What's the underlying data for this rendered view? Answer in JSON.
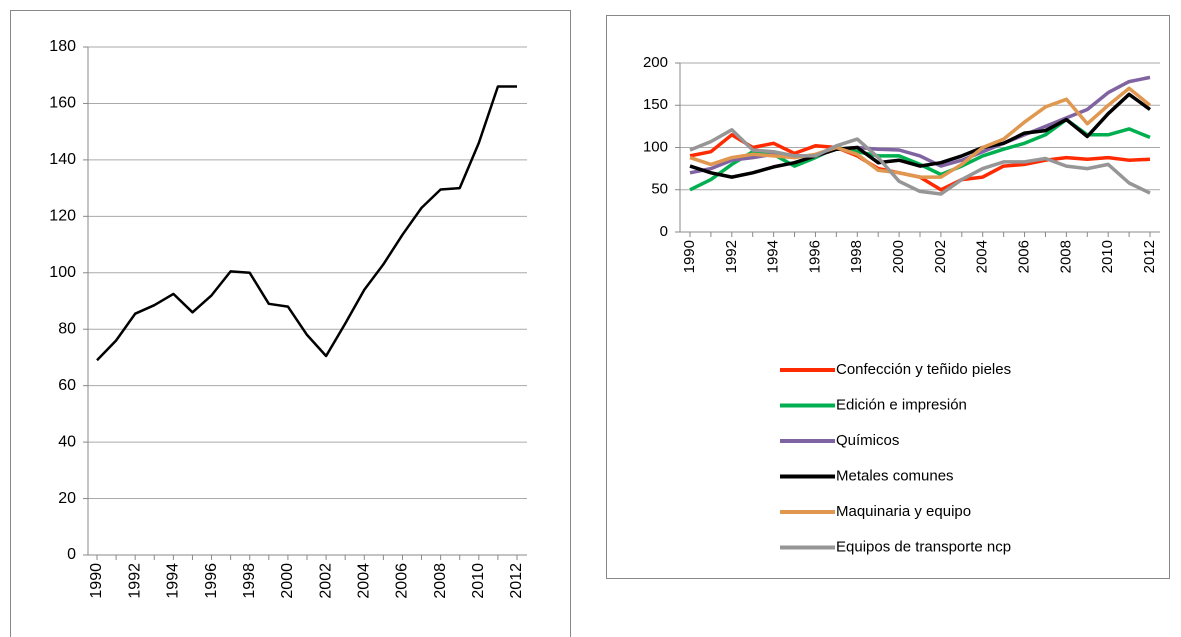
{
  "chart_data": [
    {
      "type": "line",
      "categories": [
        "1990",
        null,
        "1992",
        null,
        "1994",
        null,
        "1996",
        null,
        "1998",
        null,
        "2000",
        null,
        "2002",
        null,
        "2004",
        null,
        "2006",
        null,
        "2008",
        null,
        "2010",
        null,
        "2012"
      ],
      "values": [
        69,
        76,
        85.5,
        88.5,
        92.5,
        86,
        92,
        100.5,
        100,
        89,
        88,
        78,
        70.5,
        82,
        94,
        103,
        113.5,
        123,
        129.5,
        130,
        146,
        166,
        166
      ],
      "color": "#000000",
      "ylim": [
        0,
        180
      ],
      "yticks": [
        0,
        20,
        40,
        60,
        80,
        100,
        120,
        140,
        160,
        180
      ],
      "grid": true
    },
    {
      "type": "line",
      "categories": [
        "1990",
        null,
        "1992",
        null,
        "1994",
        null,
        "1996",
        null,
        "1998",
        null,
        "2000",
        null,
        "2002",
        null,
        "2004",
        null,
        "2006",
        null,
        "2008",
        null,
        "2010",
        null,
        "2012"
      ],
      "series": [
        {
          "name": "Confección y teñido pieles",
          "color": "#ff2a00",
          "values": [
            90,
            95,
            115,
            100,
            105,
            93,
            102,
            100,
            90,
            75,
            70,
            65,
            50,
            62,
            65,
            78,
            80,
            85,
            88,
            86,
            88,
            85,
            86
          ]
        },
        {
          "name": "Edición e impresión",
          "color": "#00b050",
          "values": [
            50,
            62,
            80,
            95,
            92,
            78,
            88,
            100,
            95,
            90,
            90,
            80,
            68,
            78,
            90,
            98,
            105,
            115,
            133,
            115,
            115,
            122,
            112
          ]
        },
        {
          "name": "Químicos",
          "color": "#8064a2",
          "values": [
            70,
            75,
            85,
            88,
            92,
            90,
            90,
            98,
            100,
            98,
            97,
            90,
            78,
            85,
            95,
            105,
            115,
            125,
            135,
            145,
            165,
            178,
            183
          ]
        },
        {
          "name": "Metales comunes",
          "color": "#000000",
          "values": [
            78,
            70,
            65,
            70,
            77,
            82,
            90,
            98,
            100,
            82,
            85,
            78,
            82,
            90,
            100,
            105,
            117,
            120,
            133,
            113,
            140,
            163,
            145
          ]
        },
        {
          "name": "Maquinaria y equipo",
          "color": "#e0974f",
          "values": [
            88,
            80,
            88,
            92,
            90,
            88,
            92,
            100,
            92,
            73,
            70,
            65,
            65,
            80,
            100,
            110,
            130,
            148,
            157,
            128,
            150,
            170,
            150
          ]
        },
        {
          "name": "Equipos de transporte ncp",
          "color": "#969696",
          "values": [
            97,
            107,
            121,
            97,
            95,
            90,
            90,
            102,
            110,
            88,
            60,
            48,
            45,
            62,
            75,
            83,
            83,
            87,
            78,
            75,
            80,
            58,
            46
          ]
        }
      ],
      "ylim": [
        0,
        200
      ],
      "yticks": [
        0,
        50,
        100,
        150,
        200
      ],
      "grid": true
    }
  ]
}
